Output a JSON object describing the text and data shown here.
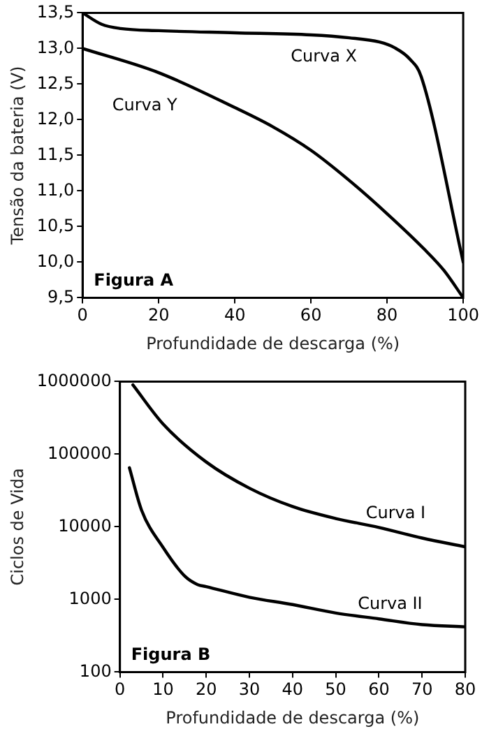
{
  "chart_data": [
    {
      "type": "line",
      "xlabel": "Profundidade de descarga (%)",
      "ylabel": "Tensão da bateria (V)",
      "annotations": [
        "Figura A"
      ],
      "grid": false,
      "legend": false,
      "marker": "none",
      "line_style": "solid",
      "xlim": [
        0,
        100
      ],
      "xticks": [
        0,
        20,
        40,
        60,
        80,
        100
      ],
      "ylim": [
        9.5,
        13.5
      ],
      "yticks": [
        {
          "value": 9.5,
          "label": "9,5"
        },
        {
          "value": 10,
          "label": "10,0"
        },
        {
          "value": 10.5,
          "label": "10,5"
        },
        {
          "value": 11,
          "label": "11,0"
        },
        {
          "value": 11.5,
          "label": "11,5"
        },
        {
          "value": 12,
          "label": "12,0"
        },
        {
          "value": 12.5,
          "label": "12,5"
        },
        {
          "value": 13,
          "label": "13,0"
        },
        {
          "value": 13.5,
          "label": "13,5"
        }
      ],
      "series": [
        {
          "name": "Curva X",
          "color": "#000000",
          "x": [
            0,
            5,
            10,
            20,
            40,
            60,
            70,
            78,
            82,
            86,
            89,
            100
          ],
          "values": [
            13.5,
            13.34,
            13.28,
            13.25,
            13.22,
            13.19,
            13.15,
            13.09,
            13.01,
            12.85,
            12.6,
            10.0
          ]
        },
        {
          "name": "Curva Y",
          "color": "#000000",
          "x": [
            0,
            20,
            40,
            50,
            60,
            70,
            80,
            90,
            95,
            100
          ],
          "values": [
            13.0,
            12.66,
            12.17,
            11.9,
            11.57,
            11.15,
            10.68,
            10.17,
            9.88,
            9.5
          ]
        }
      ]
    },
    {
      "type": "line",
      "xlabel": "Profundidade de descarga (%)",
      "ylabel": "Ciclos de Vida",
      "annotations": [
        "Figura B"
      ],
      "grid": false,
      "legend": false,
      "marker": "none",
      "line_style": "solid",
      "log": "y",
      "xlim": [
        0,
        80
      ],
      "xticks": [
        0,
        10,
        20,
        30,
        40,
        50,
        60,
        70,
        80
      ],
      "ylim": [
        100,
        1000000
      ],
      "yticks": [
        100,
        1000,
        10000,
        100000,
        1000000
      ],
      "series": [
        {
          "name": "Curva I",
          "color": "#000000",
          "x": [
            3,
            10,
            20,
            30,
            40,
            50,
            60,
            70,
            80
          ],
          "values": [
            900000,
            260000,
            78000,
            34000,
            19000,
            13000,
            9800,
            7000,
            5300
          ]
        },
        {
          "name": "Curva II",
          "color": "#000000",
          "x": [
            2.2,
            5,
            10,
            15,
            18,
            20,
            30,
            40,
            50,
            60,
            70,
            80
          ],
          "values": [
            65000,
            17000,
            5200,
            2100,
            1600,
            1500,
            1070,
            850,
            650,
            540,
            450,
            420
          ]
        }
      ]
    }
  ]
}
